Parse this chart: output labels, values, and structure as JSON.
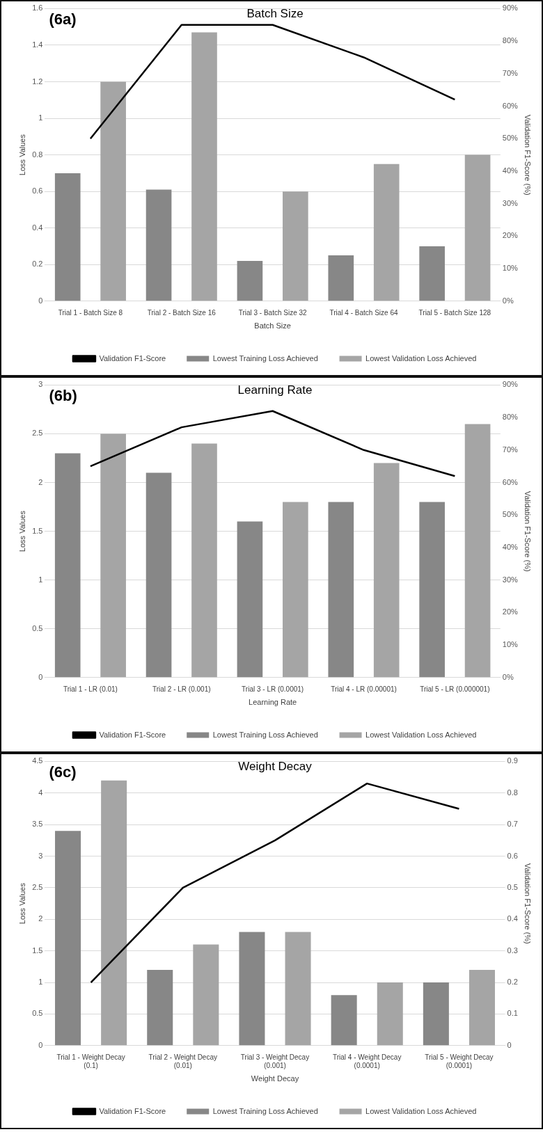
{
  "chart_data": [
    {
      "type": "bar",
      "title": "Batch Size",
      "xlabel": "Batch Size",
      "ylabel": "Loss Values",
      "y2label": "Validation F1-Score (%)",
      "annotations": [
        "(6a)"
      ],
      "categories": [
        "Trial 1 - Batch Size 8",
        "Trial 2 - Batch Size 16",
        "Trial 3 - Batch Size 32",
        "Trial 4 - Batch Size 64",
        "Trial 5 - Batch Size 128"
      ],
      "series": [
        {
          "name": "Lowest Training Loss Achieved",
          "color": "#878787",
          "values": [
            0.7,
            0.61,
            0.22,
            0.25,
            0.3
          ]
        },
        {
          "name": "Lowest Validation Loss Achieved",
          "color": "#a5a5a5",
          "values": [
            1.2,
            1.47,
            0.6,
            0.75,
            0.8
          ]
        },
        {
          "name": "Validation F1-Score",
          "type": "line",
          "axis": "y2",
          "color": "#000000",
          "values": [
            50,
            85,
            85,
            75,
            62
          ]
        }
      ],
      "ylim": [
        0,
        1.6
      ],
      "yticks": [
        0,
        0.2,
        0.4,
        0.6,
        0.8,
        1,
        1.2,
        1.4,
        1.6
      ],
      "y2lim": [
        0,
        90
      ],
      "y2ticks": [
        {
          "value": 0,
          "label": "0%"
        },
        {
          "value": 10,
          "label": "10%"
        },
        {
          "value": 20,
          "label": "20%"
        },
        {
          "value": 30,
          "label": "30%"
        },
        {
          "value": 40,
          "label": "40%"
        },
        {
          "value": 50,
          "label": "50%"
        },
        {
          "value": 60,
          "label": "60%"
        },
        {
          "value": 70,
          "label": "70%"
        },
        {
          "value": 80,
          "label": "80%"
        },
        {
          "value": 90,
          "label": "90%"
        }
      ],
      "grid": "y",
      "legend": "bottom",
      "marker": "none"
    },
    {
      "type": "bar",
      "title": "Learning Rate",
      "xlabel": "Learning Rate",
      "ylabel": "Loss Values",
      "y2label": "Validation F1-Score (%)",
      "annotations": [
        "(6b)"
      ],
      "categories": [
        "Trial 1 - LR (0.01)",
        "Trial 2 - LR (0.001)",
        "Trial 3 - LR (0.0001)",
        "Trial 4 - LR (0.00001)",
        "Trial 5 - LR (0.000001)"
      ],
      "series": [
        {
          "name": "Lowest Training Loss Achieved",
          "color": "#878787",
          "values": [
            2.3,
            2.1,
            1.6,
            1.8,
            1.8
          ]
        },
        {
          "name": "Lowest Validation Loss Achieved",
          "color": "#a5a5a5",
          "values": [
            2.5,
            2.4,
            1.8,
            2.2,
            2.6
          ]
        },
        {
          "name": "Validation F1-Score",
          "type": "line",
          "axis": "y2",
          "color": "#000000",
          "values": [
            65,
            77,
            82,
            70,
            62
          ]
        }
      ],
      "ylim": [
        0,
        3
      ],
      "yticks": [
        0,
        0.5,
        1,
        1.5,
        2,
        2.5,
        3
      ],
      "y2lim": [
        0,
        90
      ],
      "y2ticks": [
        {
          "value": 0,
          "label": "0%"
        },
        {
          "value": 10,
          "label": "10%"
        },
        {
          "value": 20,
          "label": "20%"
        },
        {
          "value": 30,
          "label": "30%"
        },
        {
          "value": 40,
          "label": "40%"
        },
        {
          "value": 50,
          "label": "50%"
        },
        {
          "value": 60,
          "label": "60%"
        },
        {
          "value": 70,
          "label": "70%"
        },
        {
          "value": 80,
          "label": "80%"
        },
        {
          "value": 90,
          "label": "90%"
        }
      ],
      "grid": "y",
      "legend": "bottom",
      "marker": "none"
    },
    {
      "type": "bar",
      "title": "Weight Decay",
      "xlabel": "Weight Decay",
      "ylabel": "Loss Values",
      "y2label": "Validation F1-Score (%)",
      "annotations": [
        "(6c)"
      ],
      "categories": [
        "Trial 1 - Weight Decay (0.1)",
        "Trial 2 - Weight Decay (0.01)",
        "Trial 3 - Weight Decay (0.001)",
        "Trial 4 - Weight Decay (0.0001)",
        "Trial 5 - Weight Decay (0.0001)"
      ],
      "series": [
        {
          "name": "Lowest Training Loss Achieved",
          "color": "#878787",
          "values": [
            3.4,
            1.2,
            1.8,
            0.8,
            1.0
          ]
        },
        {
          "name": "Lowest Validation Loss Achieved",
          "color": "#a5a5a5",
          "values": [
            4.2,
            1.6,
            1.8,
            1.0,
            1.2
          ]
        },
        {
          "name": "Validation F1-Score",
          "type": "line",
          "axis": "y2",
          "color": "#000000",
          "values": [
            0.2,
            0.5,
            0.65,
            0.83,
            0.75
          ]
        }
      ],
      "ylim": [
        0,
        4.5
      ],
      "yticks": [
        0,
        0.5,
        1,
        1.5,
        2,
        2.5,
        3,
        3.5,
        4,
        4.5
      ],
      "y2lim": [
        0,
        0.9
      ],
      "y2ticks": [
        0,
        0.1,
        0.2,
        0.3,
        0.4,
        0.5,
        0.6,
        0.7,
        0.8,
        0.9
      ],
      "grid": "y",
      "legend": "bottom",
      "marker": "none"
    }
  ]
}
